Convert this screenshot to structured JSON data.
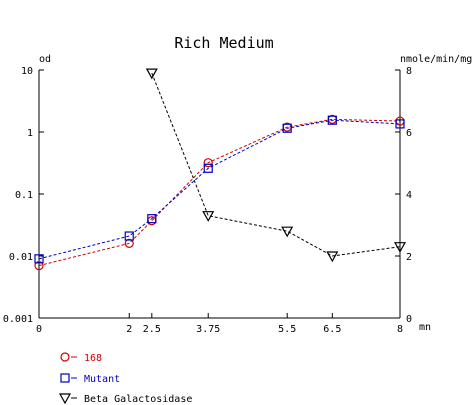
{
  "chart_data": {
    "type": "line",
    "title": "Rich Medium",
    "xlabel": "mn",
    "x_ticks": [
      0,
      2,
      2.5,
      3.75,
      5.5,
      6.5,
      8
    ],
    "xlim": [
      0,
      8
    ],
    "y_left": {
      "label": "od",
      "scale": "log",
      "ylim": [
        0.001,
        10
      ],
      "ticks": [
        0.001,
        0.01,
        0.1,
        1,
        10
      ],
      "tick_labels": [
        "0.001",
        "0.01",
        "0.1",
        "1",
        "10"
      ]
    },
    "y_right": {
      "label": "nmole/min/mg",
      "scale": "linear",
      "ylim": [
        0,
        8
      ],
      "ticks": [
        0,
        2,
        4,
        6,
        8
      ],
      "tick_labels": [
        "0",
        "2",
        "4",
        "6",
        "8"
      ]
    },
    "grid": false,
    "legend": "bottom-left",
    "series": [
      {
        "name": "168",
        "axis": "left",
        "marker": "circle",
        "color": "#d00000",
        "line_style": "dashed",
        "x": [
          0,
          2,
          2.5,
          3.75,
          5.5,
          6.5,
          8
        ],
        "y": [
          0.007,
          0.016,
          0.037,
          0.32,
          1.2,
          1.6,
          1.5
        ]
      },
      {
        "name": "Mutant",
        "axis": "left",
        "marker": "square",
        "color": "#0000c0",
        "line_style": "dashed",
        "x": [
          0,
          2,
          2.5,
          3.75,
          5.5,
          6.5,
          8
        ],
        "y": [
          0.009,
          0.021,
          0.04,
          0.26,
          1.15,
          1.55,
          1.35
        ]
      },
      {
        "name": "Beta Galactosidase",
        "axis": "right",
        "marker": "triangle-down",
        "color": "#000000",
        "line_style": "dashed",
        "x": [
          2.5,
          3.75,
          5.5,
          6.5,
          8
        ],
        "y": [
          7.9,
          3.3,
          2.8,
          2.0,
          2.3
        ]
      }
    ]
  }
}
